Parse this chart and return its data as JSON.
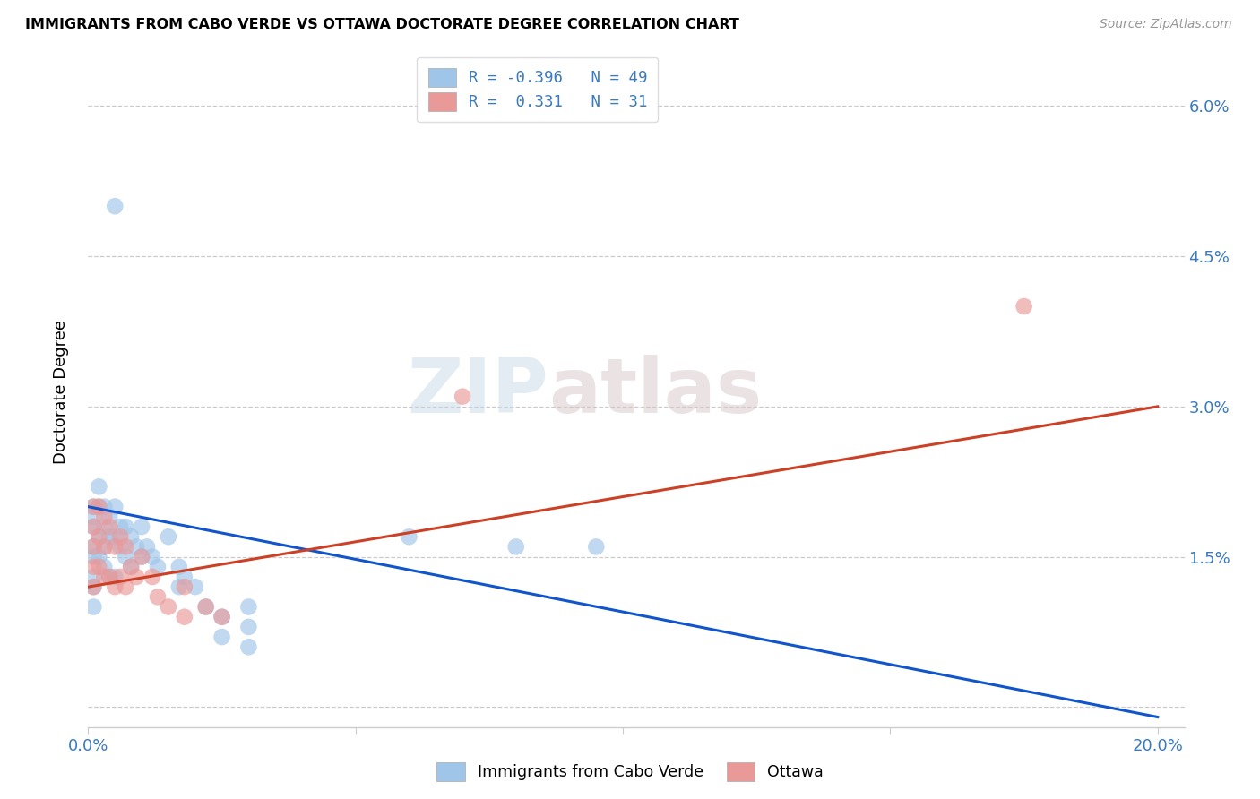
{
  "title": "IMMIGRANTS FROM CABO VERDE VS OTTAWA DOCTORATE DEGREE CORRELATION CHART",
  "source": "Source: ZipAtlas.com",
  "ylabel": "Doctorate Degree",
  "xmin": 0.0,
  "xmax": 0.205,
  "ymin": -0.002,
  "ymax": 0.065,
  "yticks": [
    0.0,
    0.015,
    0.03,
    0.045,
    0.06
  ],
  "ytick_labels_right": [
    "",
    "1.5%",
    "3.0%",
    "4.5%",
    "6.0%"
  ],
  "xticks": [
    0.0,
    0.05,
    0.1,
    0.15,
    0.2
  ],
  "xtick_labels": [
    "0.0%",
    "",
    "",
    "",
    "20.0%"
  ],
  "legend_R1": "R = -0.396",
  "legend_N1": "N = 49",
  "legend_R2": "R =  0.331",
  "legend_N2": "N = 31",
  "legend_label1": "Immigrants from Cabo Verde",
  "legend_label2": "Ottawa",
  "blue_color": "#9fc5e8",
  "pink_color": "#ea9999",
  "line_blue_color": "#1155cc",
  "line_pink_color": "#cc4125",
  "blue_x": [
    0.001,
    0.001,
    0.001,
    0.001,
    0.001,
    0.001,
    0.001,
    0.001,
    0.002,
    0.002,
    0.002,
    0.002,
    0.003,
    0.003,
    0.003,
    0.003,
    0.004,
    0.004,
    0.004,
    0.005,
    0.005,
    0.005,
    0.006,
    0.006,
    0.007,
    0.007,
    0.008,
    0.008,
    0.009,
    0.01,
    0.01,
    0.011,
    0.012,
    0.013,
    0.015,
    0.017,
    0.017,
    0.018,
    0.02,
    0.022,
    0.025,
    0.025,
    0.03,
    0.03,
    0.03,
    0.06,
    0.08,
    0.095,
    0.005
  ],
  "blue_y": [
    0.02,
    0.019,
    0.018,
    0.016,
    0.015,
    0.013,
    0.012,
    0.01,
    0.022,
    0.02,
    0.017,
    0.015,
    0.02,
    0.018,
    0.016,
    0.014,
    0.019,
    0.017,
    0.013,
    0.02,
    0.017,
    0.013,
    0.018,
    0.016,
    0.018,
    0.015,
    0.017,
    0.014,
    0.016,
    0.018,
    0.015,
    0.016,
    0.015,
    0.014,
    0.017,
    0.014,
    0.012,
    0.013,
    0.012,
    0.01,
    0.009,
    0.007,
    0.01,
    0.008,
    0.006,
    0.017,
    0.016,
    0.016,
    0.05
  ],
  "pink_x": [
    0.001,
    0.001,
    0.001,
    0.001,
    0.001,
    0.002,
    0.002,
    0.002,
    0.003,
    0.003,
    0.003,
    0.004,
    0.004,
    0.005,
    0.005,
    0.006,
    0.006,
    0.007,
    0.007,
    0.008,
    0.009,
    0.01,
    0.012,
    0.013,
    0.015,
    0.018,
    0.018,
    0.022,
    0.025,
    0.07,
    0.175
  ],
  "pink_y": [
    0.02,
    0.018,
    0.016,
    0.014,
    0.012,
    0.02,
    0.017,
    0.014,
    0.019,
    0.016,
    0.013,
    0.018,
    0.013,
    0.016,
    0.012,
    0.017,
    0.013,
    0.016,
    0.012,
    0.014,
    0.013,
    0.015,
    0.013,
    0.011,
    0.01,
    0.012,
    0.009,
    0.01,
    0.009,
    0.031,
    0.04
  ],
  "watermark_zip": "ZIP",
  "watermark_atlas": "atlas",
  "grid_color": "#cccccc",
  "background_color": "#ffffff",
  "blue_line_start_x": 0.0,
  "blue_line_end_x": 0.2,
  "blue_line_start_y": 0.02,
  "blue_line_end_y": -0.001,
  "pink_line_start_x": 0.0,
  "pink_line_end_x": 0.2,
  "pink_line_start_y": 0.012,
  "pink_line_end_y": 0.03
}
